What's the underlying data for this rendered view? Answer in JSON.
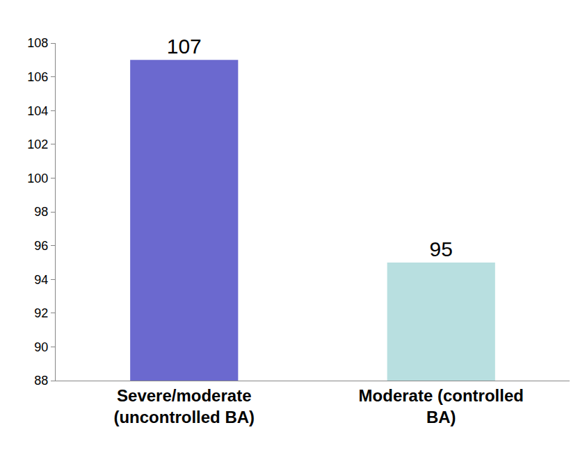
{
  "chart_data": {
    "type": "bar",
    "categories": [
      "Severe/moderate (uncontrolled BA)",
      "Moderate (controlled BA)"
    ],
    "values": [
      107,
      95
    ],
    "colors": [
      "#6b69cf",
      "#b8dfe0"
    ],
    "ylim": [
      88,
      108
    ],
    "yticks": [
      88,
      90,
      92,
      94,
      96,
      98,
      100,
      102,
      104,
      106,
      108
    ],
    "grid": false,
    "data_labels": true
  }
}
